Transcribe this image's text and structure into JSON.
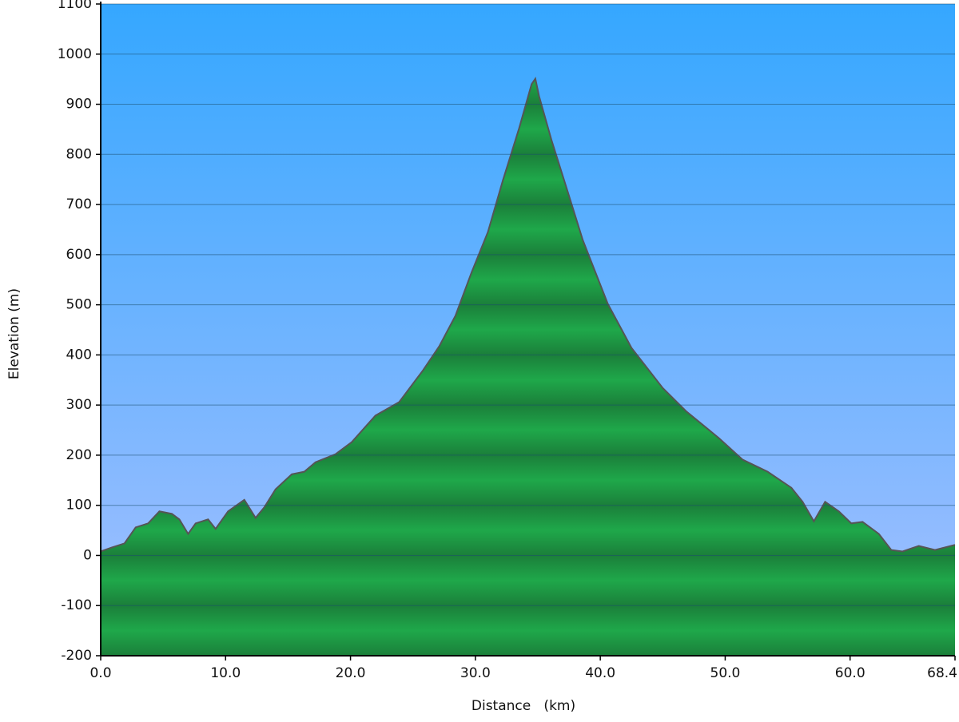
{
  "chart_data": {
    "type": "area",
    "x_label": "Distance   (km)",
    "y_label": "Elevation (m)",
    "x": [
      0,
      0.9,
      1.9,
      2.8,
      3.8,
      4.7,
      5.7,
      6.3,
      7.0,
      7.6,
      8.6,
      9.2,
      10.2,
      11.5,
      12.4,
      13.1,
      14.0,
      15.3,
      16.3,
      17.2,
      18.8,
      20.1,
      22.0,
      23.9,
      25.8,
      27.1,
      28.4,
      29.7,
      31.0,
      32.2,
      33.5,
      34.5,
      34.8,
      35.1,
      36.1,
      37.4,
      38.6,
      40.6,
      42.5,
      45.0,
      46.9,
      49.5,
      51.4,
      53.4,
      55.3,
      56.2,
      57.1,
      58.0,
      59.1,
      60.1,
      61.0,
      62.3,
      63.3,
      64.2,
      65.5,
      66.8,
      68.4
    ],
    "values": [
      8,
      16,
      24,
      56,
      64,
      88,
      83,
      72,
      43,
      64,
      72,
      53,
      88,
      111,
      75,
      96,
      132,
      162,
      167,
      186,
      202,
      226,
      279,
      306,
      369,
      417,
      478,
      565,
      645,
      748,
      852,
      940,
      951,
      916,
      828,
      725,
      629,
      502,
      414,
      334,
      287,
      234,
      191,
      167,
      135,
      107,
      68,
      107,
      88,
      64,
      67,
      43,
      11,
      8,
      19,
      11,
      21
    ],
    "color": "#1fa84a",
    "line_color": "#555555",
    "xlim": [
      0,
      68.4
    ],
    "xticks": [
      {
        "value": 0,
        "label": "0.0"
      },
      {
        "value": 10,
        "label": "10.0"
      },
      {
        "value": 20,
        "label": "20.0"
      },
      {
        "value": 30,
        "label": "30.0"
      },
      {
        "value": 40,
        "label": "40.0"
      },
      {
        "value": 50,
        "label": "50.0"
      },
      {
        "value": 60,
        "label": "60.0"
      },
      68.4
    ],
    "ylim": [
      -200,
      1100
    ],
    "yticks": [
      -200,
      -100,
      0,
      100,
      200,
      300,
      400,
      500,
      600,
      700,
      800,
      900,
      1000,
      1100
    ],
    "grid": true
  }
}
